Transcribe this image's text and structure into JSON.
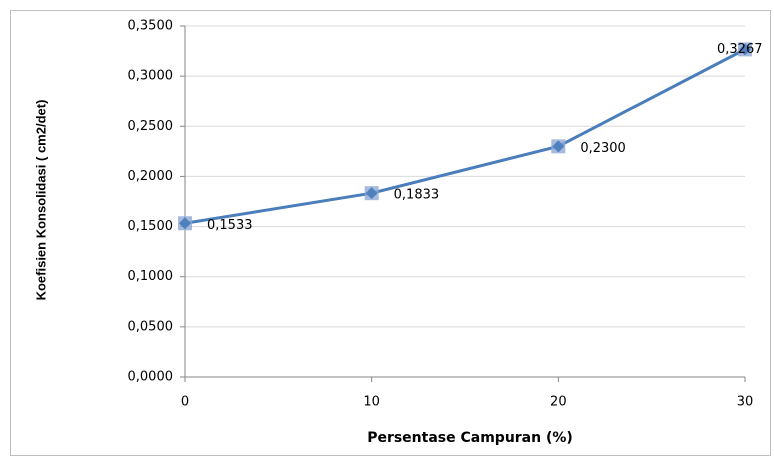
{
  "chart_data": {
    "type": "line",
    "x_label": "Persentase Campuran (%)",
    "y_label": "Koefisien Konsolidasi ( cm2/det)",
    "x": [
      0,
      10,
      20,
      30
    ],
    "series": [
      {
        "name": "Koefisien Konsolidasi",
        "color": "#4a7ebb",
        "values": [
          0.1533,
          0.1833,
          0.23,
          0.3267
        ],
        "value_labels": [
          "0,1533",
          "0,1833",
          "0,2300",
          "0,3267"
        ]
      }
    ],
    "xlim": [
      0,
      30
    ],
    "xticks": [
      0,
      10,
      20,
      30
    ],
    "ylim": [
      0,
      0.35
    ],
    "yticks": [
      {
        "value": 0,
        "label": "0,0000"
      },
      {
        "value": 0.05,
        "label": "0,0500"
      },
      {
        "value": 0.1,
        "label": "0,1000"
      },
      {
        "value": 0.15,
        "label": "0,1500"
      },
      {
        "value": 0.2,
        "label": "0,2000"
      },
      {
        "value": 0.25,
        "label": "0,2500"
      },
      {
        "value": 0.3,
        "label": "0,3000"
      },
      {
        "value": 0.35,
        "label": "0,3500"
      }
    ],
    "grid": true
  }
}
